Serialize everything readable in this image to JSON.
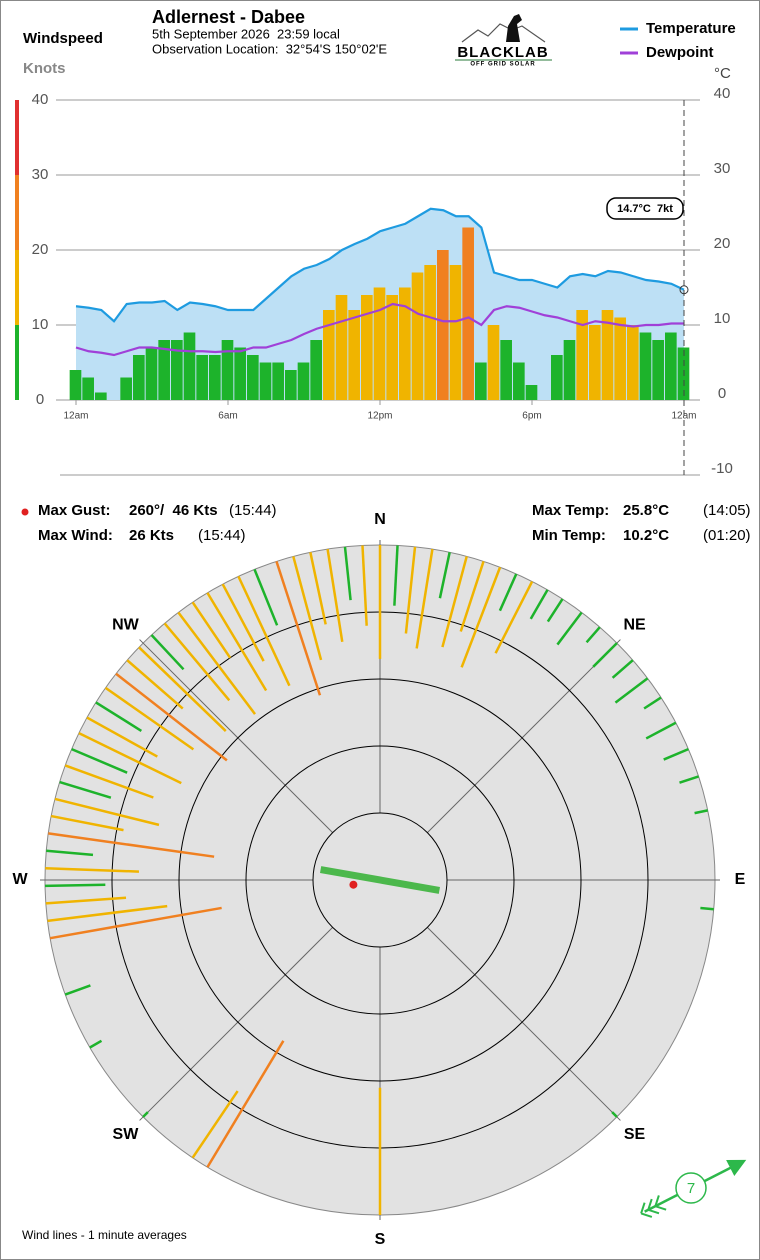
{
  "header": {
    "logo": "BLACKLAB",
    "logo_tagline": "OFF GRID SOLAR"
  },
  "stats": {
    "max_gust": {
      "label": "Max Gust:",
      "value": "260°/  46 Kts",
      "time": "(15:44)"
    },
    "max_wind": {
      "label": "Max Wind:",
      "value": "26 Kts",
      "time": "(15:44)"
    },
    "max_temp": {
      "label": "Max Temp:",
      "value": "25.8°C",
      "time": "(14:05)"
    },
    "min_temp": {
      "label": "Min Temp:",
      "value": "10.2°C",
      "time": "(01:20)"
    }
  },
  "chart_data": [
    {
      "type": "timeseries",
      "title": "Adlernest - Dabee",
      "subtitle": [
        "5th September 2026  23:59 local",
        "Observation Location:  32°54'S 150°02'E"
      ],
      "y_label": "Windspeed",
      "y_unit": "Knots",
      "y2_unit": "°C",
      "annotation": "14.7°C  7kt",
      "grid": true,
      "x": [
        0,
        0.5,
        1,
        1.5,
        2,
        2.5,
        3,
        3.5,
        4,
        4.5,
        5,
        5.5,
        6,
        6.5,
        7,
        7.5,
        8,
        8.5,
        9,
        9.5,
        10,
        10.5,
        11,
        11.5,
        12,
        12.5,
        13,
        13.5,
        14,
        14.5,
        15,
        15.5,
        16,
        16.5,
        17,
        17.5,
        18,
        18.5,
        19,
        19.5,
        20,
        20.5,
        21,
        21.5,
        22,
        22.5,
        23,
        23.5,
        24
      ],
      "xlim": [
        0,
        24
      ],
      "xticks": [
        {
          "value": 0,
          "label": "12am"
        },
        {
          "value": 6,
          "label": "6am"
        },
        {
          "value": 12,
          "label": "12pm"
        },
        {
          "value": 18,
          "label": "6pm"
        },
        {
          "value": 24,
          "label": "12am"
        }
      ],
      "ylim": [
        0,
        40
      ],
      "yticks": [
        0,
        10,
        20,
        30,
        40
      ],
      "y2lim": [
        -10,
        40
      ],
      "y2ticks": [
        -10,
        0,
        10,
        20,
        30,
        40
      ],
      "speed_bands": [
        {
          "max": 10,
          "color": "#1db32b"
        },
        {
          "max": 20,
          "color": "#f0b400"
        },
        {
          "max": 30,
          "color": "#f08020"
        },
        {
          "max": 40,
          "color": "#e03030"
        }
      ],
      "area_color": "#bde0f5",
      "wind": [
        4,
        3,
        1,
        0,
        3,
        6,
        7,
        8,
        8,
        9,
        6,
        6,
        8,
        7,
        6,
        5,
        5,
        4,
        5,
        8,
        12,
        14,
        12,
        14,
        15,
        14,
        15,
        17,
        18,
        20,
        18,
        23,
        5,
        10,
        8,
        5,
        2,
        0,
        6,
        8,
        12,
        10,
        12,
        11,
        10,
        9,
        8,
        9,
        7
      ],
      "series": [
        {
          "name": "Temperature",
          "color": "#1e9be0",
          "axis": "y2",
          "values": [
            12.5,
            12.3,
            12.0,
            10.5,
            12.8,
            13.0,
            13.0,
            13.2,
            12.0,
            13.0,
            12.8,
            12.5,
            12.0,
            12.0,
            12.0,
            13.5,
            15.0,
            16.5,
            17.5,
            18.0,
            18.8,
            20.0,
            20.8,
            21.5,
            22.5,
            23.0,
            23.5,
            24.5,
            25.5,
            25.3,
            24.5,
            24.5,
            23.0,
            17.0,
            16.5,
            16.0,
            16.0,
            15.5,
            15.0,
            16.5,
            16.8,
            16.5,
            17.2,
            17.0,
            16.5,
            16.0,
            15.8,
            15.5,
            14.7
          ]
        },
        {
          "name": "Dewpoint",
          "color": "#a040d8",
          "axis": "y2",
          "values": [
            7.0,
            6.5,
            6.3,
            6.0,
            6.5,
            7.0,
            7.0,
            6.8,
            6.6,
            6.5,
            6.5,
            6.4,
            6.5,
            6.5,
            7.0,
            7.0,
            7.5,
            8.0,
            8.8,
            9.5,
            10.0,
            10.5,
            11.0,
            11.5,
            12.0,
            12.8,
            12.5,
            11.5,
            11.0,
            10.5,
            10.5,
            11.0,
            10.0,
            12.0,
            12.5,
            12.3,
            11.8,
            11.3,
            11.0,
            10.5,
            10.0,
            10.5,
            10.3,
            10.0,
            9.8,
            10.0,
            10.0,
            10.2,
            10.2
          ]
        }
      ]
    },
    {
      "type": "windrose",
      "note": "Wind lines - 1 minute averages",
      "rlim": [
        0,
        50
      ],
      "rings": [
        10,
        20,
        30,
        40
      ],
      "compass": [
        {
          "label": "N",
          "angle": 0
        },
        {
          "label": "NE",
          "angle": 45
        },
        {
          "label": "E",
          "angle": 90
        },
        {
          "label": "SE",
          "angle": 135
        },
        {
          "label": "S",
          "angle": 180
        },
        {
          "label": "SW",
          "angle": 225
        },
        {
          "label": "W",
          "angle": 270
        },
        {
          "label": "NW",
          "angle": 315
        }
      ],
      "directions": [
        290,
        293,
        296,
        299,
        302,
        305,
        308,
        311,
        314,
        317,
        320,
        323,
        326,
        329,
        332,
        335,
        338,
        342,
        345,
        348,
        351,
        354,
        357,
        0,
        3,
        6,
        9,
        12,
        15,
        18,
        21,
        24,
        27,
        30,
        33,
        37,
        41,
        45,
        49,
        53,
        57,
        62,
        67,
        72,
        78,
        95,
        135,
        260,
        263,
        266,
        269,
        272,
        275,
        278,
        281,
        284,
        287,
        250,
        240,
        214,
        211,
        180,
        225
      ],
      "speeds": [
        14,
        9,
        17,
        12,
        8,
        16,
        21,
        11,
        18,
        7,
        15,
        19,
        10,
        17,
        13,
        18,
        9,
        21,
        16,
        11,
        14,
        8,
        12,
        17,
        9,
        13,
        15,
        7,
        14,
        11,
        16,
        6,
        12,
        5,
        4,
        6,
        3,
        5,
        4,
        6,
        3,
        5,
        4,
        3,
        2,
        2,
        1,
        26,
        18,
        12,
        9,
        14,
        7,
        25,
        11,
        16,
        8,
        4,
        2,
        12,
        22,
        19,
        1
      ],
      "mean_wind": {
        "direction": 280,
        "speed": 9
      },
      "current_wind": {
        "direction": 63,
        "speed": 7,
        "color": "#2db84b"
      }
    }
  ]
}
